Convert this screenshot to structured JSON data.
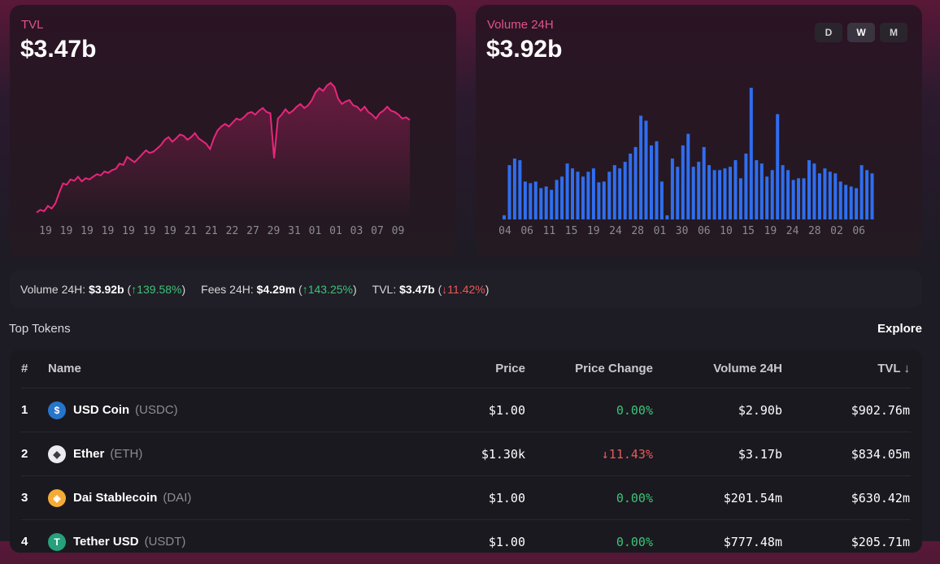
{
  "tvl_card": {
    "label": "TVL",
    "value": "$3.47b"
  },
  "volume_card": {
    "label": "Volume 24H",
    "value": "$3.92b",
    "periods": [
      "D",
      "W",
      "M"
    ],
    "active_period": "W"
  },
  "chart_data": [
    {
      "type": "area",
      "color": "#e8267a",
      "x_ticks": [
        "19",
        "19",
        "19",
        "19",
        "19",
        "19",
        "19",
        "21",
        "21",
        "22",
        "27",
        "29",
        "31",
        "01",
        "01",
        "03",
        "07",
        "09"
      ],
      "values": [
        8,
        12,
        10,
        18,
        14,
        22,
        38,
        52,
        50,
        58,
        56,
        62,
        55,
        60,
        58,
        62,
        66,
        64,
        70,
        68,
        72,
        74,
        82,
        80,
        92,
        88,
        84,
        90,
        96,
        102,
        98,
        100,
        105,
        110,
        118,
        122,
        115,
        120,
        126,
        124,
        118,
        122,
        128,
        120,
        116,
        112,
        104,
        120,
        132,
        138,
        142,
        138,
        144,
        150,
        148,
        152,
        158,
        160,
        156,
        162,
        166,
        160,
        158,
        90,
        150,
        156,
        164,
        158,
        162,
        168,
        172,
        166,
        170,
        178,
        190,
        196,
        192,
        200,
        204,
        198,
        180,
        172,
        176,
        178,
        170,
        168,
        162,
        168,
        160,
        156,
        150,
        158,
        162,
        168,
        162,
        160,
        156,
        150,
        152,
        148
      ],
      "colors": {
        "line": "#e8267a"
      }
    },
    {
      "type": "bar",
      "color": "#2f6ef0",
      "x_ticks": [
        "04",
        "06",
        "11",
        "15",
        "19",
        "24",
        "28",
        "01",
        "30",
        "06",
        "10",
        "15",
        "19",
        "24",
        "28",
        "02",
        "06"
      ],
      "values": [
        5,
        66,
        74,
        72,
        46,
        44,
        46,
        38,
        40,
        36,
        48,
        52,
        68,
        62,
        58,
        52,
        58,
        62,
        45,
        46,
        58,
        66,
        62,
        70,
        80,
        88,
        126,
        120,
        90,
        95,
        46,
        5,
        74,
        64,
        90,
        104,
        64,
        70,
        88,
        66,
        60,
        60,
        62,
        64,
        72,
        50,
        80,
        160,
        72,
        68,
        52,
        60,
        128,
        66,
        60,
        48,
        50,
        50,
        72,
        68,
        56,
        62,
        58,
        56,
        46,
        42,
        40,
        38,
        66,
        60,
        56
      ]
    }
  ],
  "stats": [
    {
      "label": "Volume 24H:",
      "value": "$3.92b",
      "change": "↑139.58%",
      "dir": "up"
    },
    {
      "label": "Fees 24H:",
      "value": "$4.29m",
      "change": "↑143.25%",
      "dir": "up"
    },
    {
      "label": "TVL:",
      "value": "$3.47b",
      "change": "↓11.42%",
      "dir": "down"
    }
  ],
  "top_tokens": {
    "title": "Top Tokens",
    "explore": "Explore",
    "columns": {
      "idx": "#",
      "name": "Name",
      "price": "Price",
      "change": "Price Change",
      "volume": "Volume 24H",
      "tvl": "TVL ↓"
    },
    "rows": [
      {
        "idx": "1",
        "name": "USD Coin",
        "symbol": "(USDC)",
        "price": "$1.00",
        "change": "0.00%",
        "dir": "up",
        "volume": "$2.90b",
        "tvl": "$902.76m",
        "icon": "usdc-icon",
        "icon_bg": "#2775ca",
        "icon_glyph": "$"
      },
      {
        "idx": "2",
        "name": "Ether",
        "symbol": "(ETH)",
        "price": "$1.30k",
        "change": "↓11.43%",
        "dir": "down",
        "volume": "$3.17b",
        "tvl": "$834.05m",
        "icon": "eth-icon",
        "icon_bg": "#ececf0",
        "icon_glyph": "◆"
      },
      {
        "idx": "3",
        "name": "Dai Stablecoin",
        "symbol": "(DAI)",
        "price": "$1.00",
        "change": "0.00%",
        "dir": "up",
        "volume": "$201.54m",
        "tvl": "$630.42m",
        "icon": "dai-icon",
        "icon_bg": "#f5ac37",
        "icon_glyph": "◈"
      },
      {
        "idx": "4",
        "name": "Tether USD",
        "symbol": "(USDT)",
        "price": "$1.00",
        "change": "0.00%",
        "dir": "up",
        "volume": "$777.48m",
        "tvl": "$205.71m",
        "icon": "usdt-icon",
        "icon_bg": "#26a17b",
        "icon_glyph": "T"
      }
    ]
  }
}
